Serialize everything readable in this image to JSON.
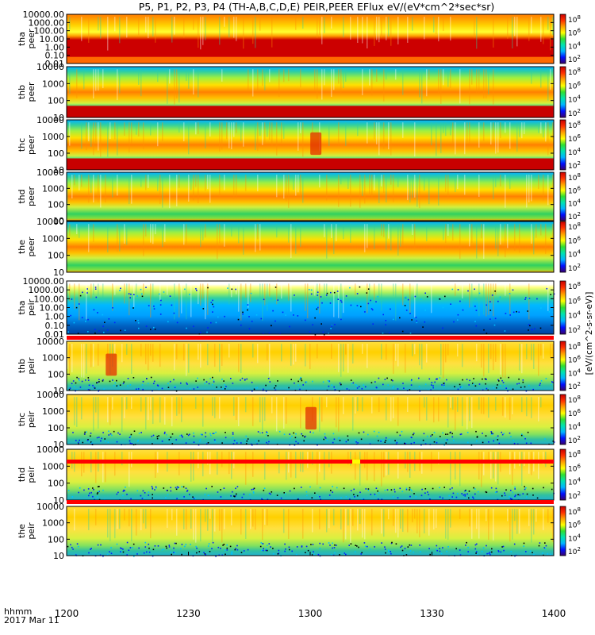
{
  "chart_data": {
    "type": "heatmap",
    "title": "P5, P1, P2, P3, P4 (TH-A,B,C,D,E) PEIR,PEER EFlux eV/(eV*cm^2*sec*sr)",
    "x_ticks": [
      "1200",
      "1230",
      "1300",
      "1330",
      "1400"
    ],
    "x_range": [
      1200,
      1400
    ],
    "x_label_line1": "hhmm",
    "x_label_line2": "2017 Mar 11",
    "colorbar_label": "[eV/(cm^2-s-sr-eV)]",
    "colorbar_exponents": [
      "8",
      "6",
      "4",
      "2"
    ],
    "colorscale": [
      "#3a006a",
      "#0010ff",
      "#00b4ff",
      "#00e2b0",
      "#30e030",
      "#ffff00",
      "#ffa000",
      "#ff3000",
      "#c80000"
    ],
    "panels": [
      {
        "probe": "tha",
        "species": "peer",
        "ylim": [
          0.01,
          10000
        ],
        "yticks": [
          "10000.00",
          "1000.00",
          "100.00",
          "10.00",
          "1.00",
          "0.10",
          "0.01"
        ],
        "log": true,
        "low_band": "saturated"
      },
      {
        "probe": "thb",
        "species": "peer",
        "ylim": [
          10,
          10000
        ],
        "yticks": [
          "10000",
          "1000",
          "100",
          "10"
        ],
        "log": true,
        "low_band": "saturated"
      },
      {
        "probe": "thc",
        "species": "peer",
        "ylim": [
          10,
          10000
        ],
        "yticks": [
          "10000",
          "1000",
          "100",
          "10"
        ],
        "log": true,
        "low_band": "saturated",
        "feature_time": 1302
      },
      {
        "probe": "thd",
        "species": "peer",
        "ylim": [
          10,
          10000
        ],
        "yticks": [
          "10000",
          "1000",
          "100",
          "10"
        ],
        "log": true,
        "low_band": "thin"
      },
      {
        "probe": "the",
        "species": "peer",
        "ylim": [
          10,
          10000
        ],
        "yticks": [
          "10000",
          "1000",
          "100",
          "10"
        ],
        "log": true,
        "low_band": "thin"
      },
      {
        "probe": "tha",
        "species": "peir",
        "ylim": [
          0.01,
          10000
        ],
        "yticks": [
          "10000.00",
          "1000.00",
          "100.00",
          "10.00",
          "1.00",
          "0.10",
          "0.01"
        ],
        "log": true,
        "low_band": "speckle"
      },
      {
        "probe": "thb",
        "species": "peir",
        "ylim": [
          10,
          10000
        ],
        "yticks": [
          "10000",
          "1000",
          "100",
          "10"
        ],
        "log": true,
        "low_band": "none",
        "feature_time": 1218
      },
      {
        "probe": "thc",
        "species": "peir",
        "ylim": [
          10,
          10000
        ],
        "yticks": [
          "10000",
          "1000",
          "100",
          "10"
        ],
        "log": true,
        "low_band": "none",
        "feature_time": 1300
      },
      {
        "probe": "thd",
        "species": "peir",
        "ylim": [
          10,
          10000
        ],
        "yticks": [
          "10000",
          "1000",
          "100",
          "10"
        ],
        "log": true,
        "low_band": "none"
      },
      {
        "probe": "the",
        "species": "peir",
        "ylim": [
          10,
          10000
        ],
        "yticks": [
          "10000",
          "1000",
          "100",
          "10"
        ],
        "log": true,
        "low_band": "none"
      }
    ]
  }
}
